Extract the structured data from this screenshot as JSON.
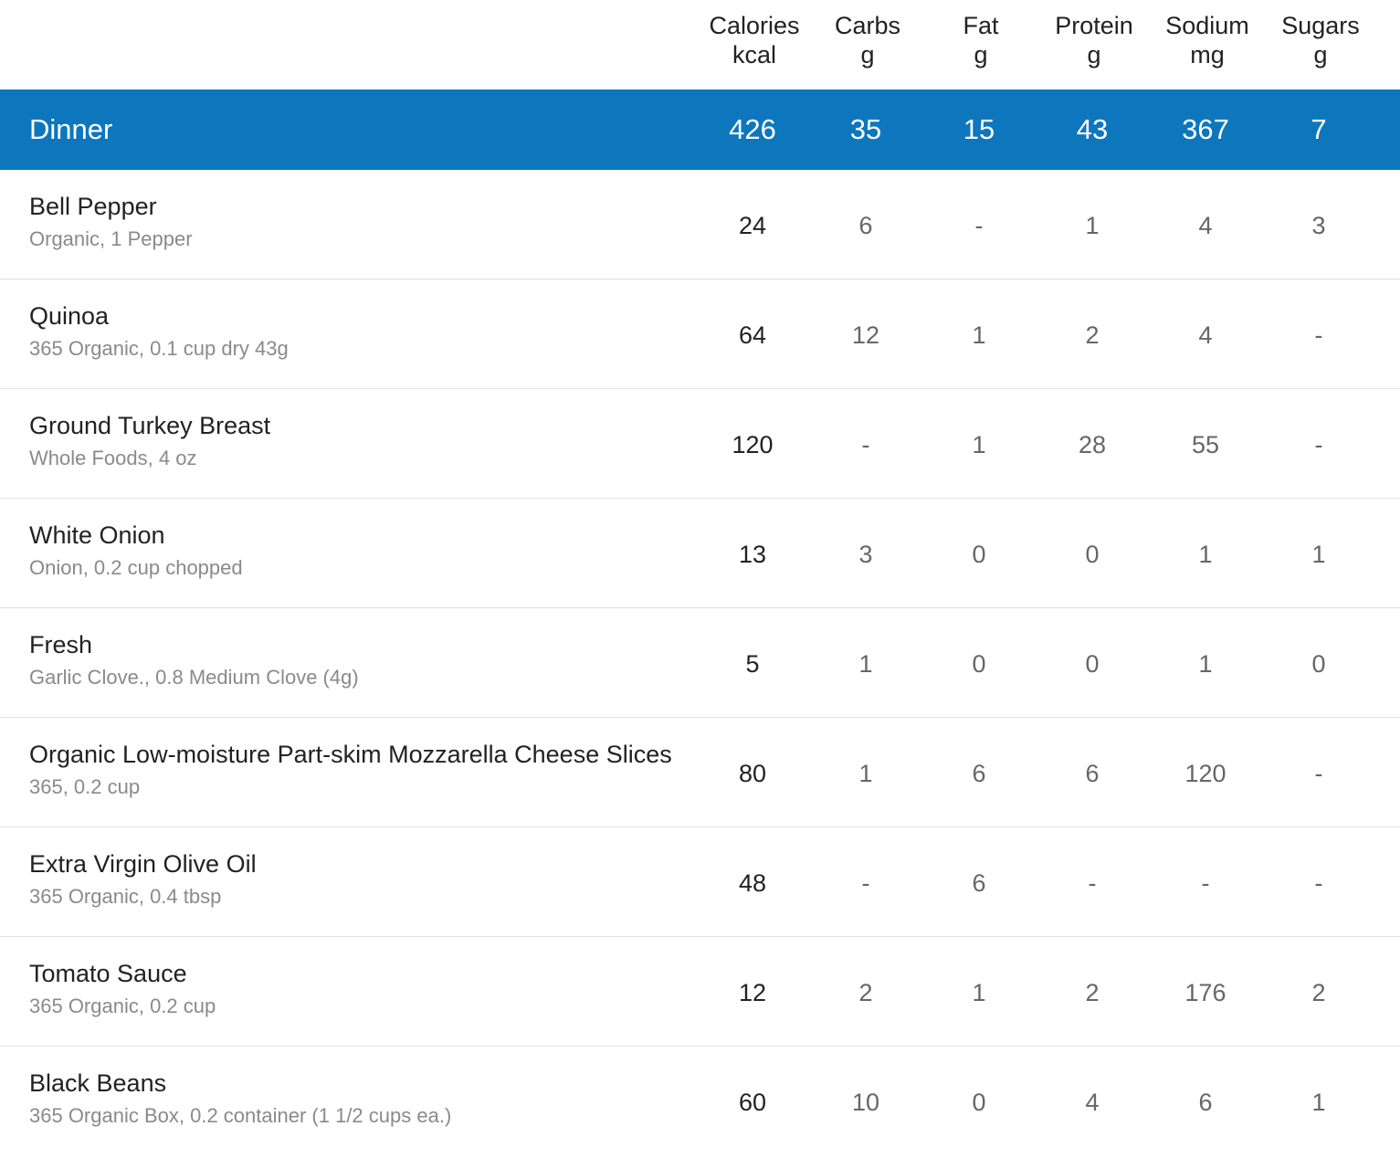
{
  "columns": [
    {
      "name": "Calories",
      "unit": "kcal"
    },
    {
      "name": "Carbs",
      "unit": "g"
    },
    {
      "name": "Fat",
      "unit": "g"
    },
    {
      "name": "Protein",
      "unit": "g"
    },
    {
      "name": "Sodium",
      "unit": "mg"
    },
    {
      "name": "Sugars",
      "unit": "g"
    }
  ],
  "meal": {
    "title": "Dinner",
    "totals": [
      "426",
      "35",
      "15",
      "43",
      "367",
      "7"
    ],
    "accent_color": "#0d76bd"
  },
  "foods": [
    {
      "name": "Bell Pepper",
      "desc": "Organic, 1 Pepper",
      "values": [
        "24",
        "6",
        "-",
        "1",
        "4",
        "3"
      ]
    },
    {
      "name": "Quinoa",
      "desc": "365 Organic, 0.1 cup dry 43g",
      "values": [
        "64",
        "12",
        "1",
        "2",
        "4",
        "-"
      ]
    },
    {
      "name": "Ground Turkey Breast",
      "desc": "Whole Foods, 4 oz",
      "values": [
        "120",
        "-",
        "1",
        "28",
        "55",
        "-"
      ]
    },
    {
      "name": "White Onion",
      "desc": "Onion, 0.2 cup chopped",
      "values": [
        "13",
        "3",
        "0",
        "0",
        "1",
        "1"
      ]
    },
    {
      "name": "Fresh",
      "desc": "Garlic Clove., 0.8 Medium Clove (4g)",
      "values": [
        "5",
        "1",
        "0",
        "0",
        "1",
        "0"
      ]
    },
    {
      "name": "Organic Low-moisture Part-skim Mozzarella Cheese Slices",
      "desc": "365, 0.2 cup",
      "values": [
        "80",
        "1",
        "6",
        "6",
        "120",
        "-"
      ]
    },
    {
      "name": "Extra Virgin Olive Oil",
      "desc": "365 Organic, 0.4 tbsp",
      "values": [
        "48",
        "-",
        "6",
        "-",
        "-",
        "-"
      ]
    },
    {
      "name": "Tomato Sauce",
      "desc": "365 Organic, 0.2 cup",
      "values": [
        "12",
        "2",
        "1",
        "2",
        "176",
        "2"
      ]
    },
    {
      "name": "Black Beans",
      "desc": "365 Organic Box, 0.2 container (1 1/2 cups ea.)",
      "values": [
        "60",
        "10",
        "0",
        "4",
        "6",
        "1"
      ]
    }
  ]
}
